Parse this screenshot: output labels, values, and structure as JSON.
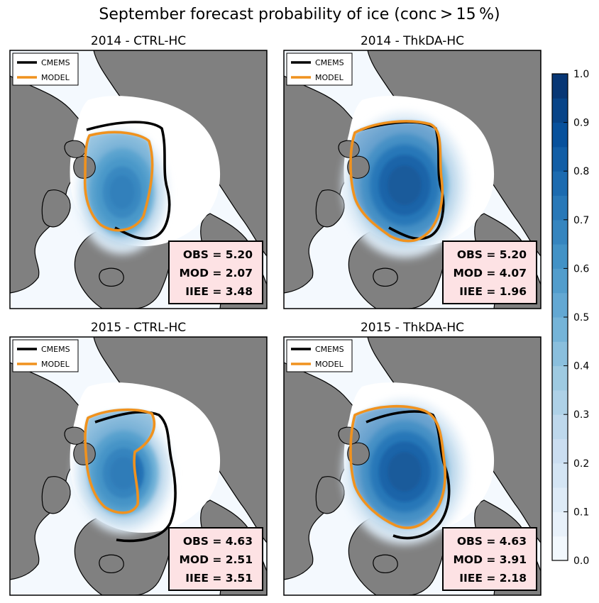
{
  "figure": {
    "title": "September forecast probability of ice (conc > 15 %)"
  },
  "colors": {
    "land": "#808080",
    "ocean": "#f4f9fe",
    "cmems_line": "#000000",
    "model_line": "#f0921e",
    "stats_box_bg": "#fde2e4",
    "colormap": "Blues"
  },
  "legend": {
    "entries": [
      {
        "label": "CMEMS",
        "color": "#000000"
      },
      {
        "label": "MODEL",
        "color": "#f0921e"
      }
    ]
  },
  "panels": [
    {
      "title": "2014 - CTRL-HC",
      "stats": {
        "obs": "OBS = 5.20",
        "mod": "MOD = 2.07",
        "iiee": "IIEE = 3.48"
      }
    },
    {
      "title": "2014 - ThkDA-HC",
      "stats": {
        "obs": "OBS = 5.20",
        "mod": "MOD = 4.07",
        "iiee": "IIEE = 1.96"
      }
    },
    {
      "title": "2015 - CTRL-HC",
      "stats": {
        "obs": "OBS = 4.63",
        "mod": "MOD = 2.51",
        "iiee": "IIEE = 3.51"
      }
    },
    {
      "title": "2015 - ThkDA-HC",
      "stats": {
        "obs": "OBS = 4.63",
        "mod": "MOD = 3.91",
        "iiee": "IIEE = 2.18"
      }
    }
  ],
  "colorbar": {
    "min": 0.0,
    "max": 1.0,
    "levels": 20,
    "ticks": [
      "0.0",
      "0.1",
      "0.2",
      "0.3",
      "0.4",
      "0.5",
      "0.6",
      "0.7",
      "0.8",
      "0.9",
      "1.0"
    ]
  }
}
